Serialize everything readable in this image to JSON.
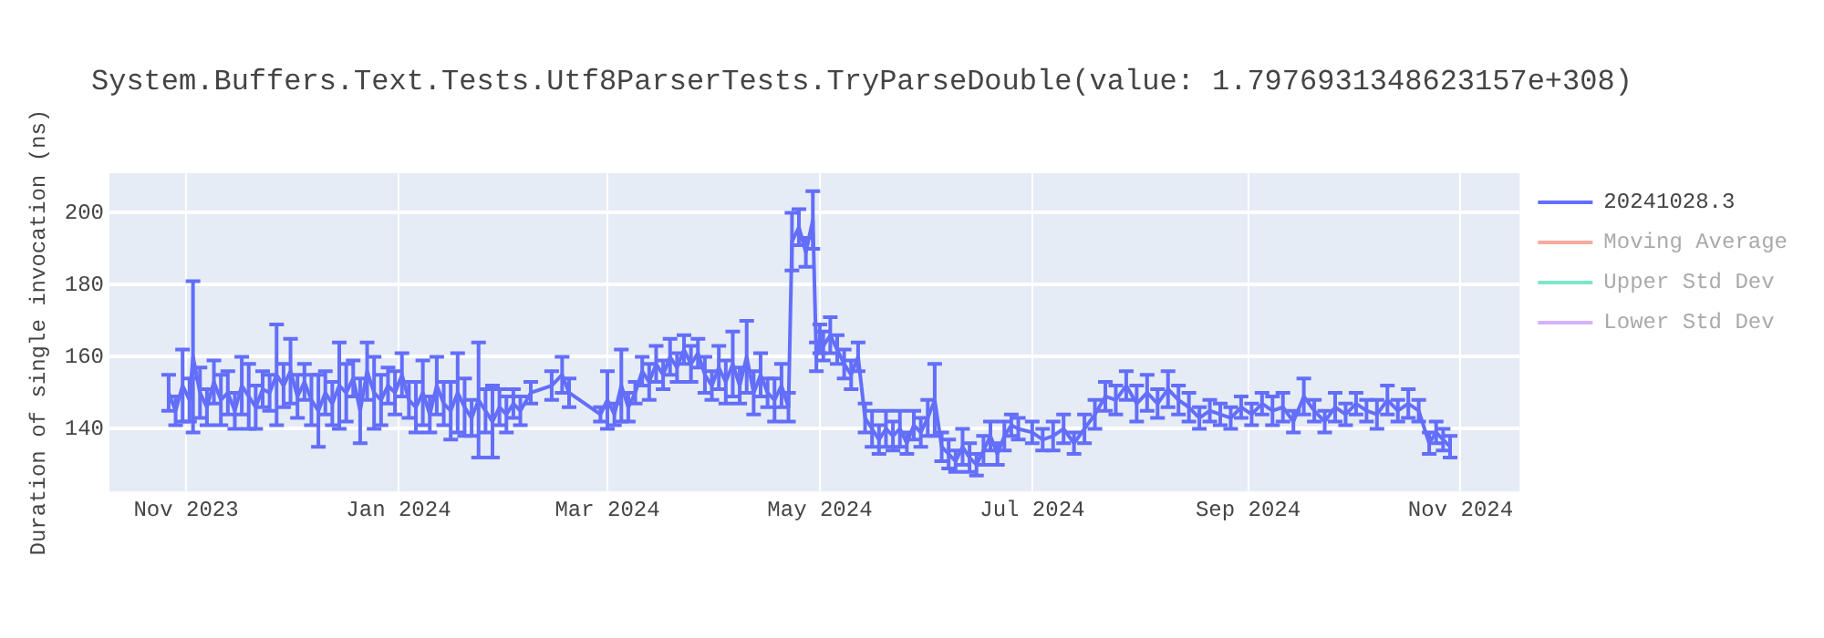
{
  "chart_data": {
    "type": "line",
    "title": "System.Buffers.Text.Tests.Utf8ParserTests.TryParseDouble(value: 1.7976931348623157e+308)",
    "ylabel": "Duration of single invocation (ns)",
    "x": [
      "2023-10-27",
      "2023-10-29",
      "2023-10-31",
      "2023-11-02",
      "2023-11-03",
      "2023-11-05",
      "2023-11-07",
      "2023-11-09",
      "2023-11-11",
      "2023-11-13",
      "2023-11-15",
      "2023-11-17",
      "2023-11-19",
      "2023-11-21",
      "2023-11-23",
      "2023-11-25",
      "2023-11-27",
      "2023-11-29",
      "2023-12-01",
      "2023-12-03",
      "2023-12-05",
      "2023-12-07",
      "2023-12-09",
      "2023-12-11",
      "2023-12-13",
      "2023-12-15",
      "2023-12-17",
      "2023-12-19",
      "2023-12-21",
      "2023-12-23",
      "2023-12-25",
      "2023-12-27",
      "2023-12-29",
      "2023-12-31",
      "2024-01-02",
      "2024-01-04",
      "2024-01-06",
      "2024-01-08",
      "2024-01-10",
      "2024-01-12",
      "2024-01-14",
      "2024-01-16",
      "2024-01-18",
      "2024-01-20",
      "2024-01-22",
      "2024-01-24",
      "2024-01-26",
      "2024-01-28",
      "2024-01-30",
      "2024-02-01",
      "2024-02-03",
      "2024-02-05",
      "2024-02-08",
      "2024-02-14",
      "2024-02-17",
      "2024-02-19",
      "2024-02-28",
      "2024-03-01",
      "2024-03-03",
      "2024-03-05",
      "2024-03-07",
      "2024-03-09",
      "2024-03-11",
      "2024-03-13",
      "2024-03-15",
      "2024-03-17",
      "2024-03-19",
      "2024-03-21",
      "2024-03-23",
      "2024-03-25",
      "2024-03-27",
      "2024-03-29",
      "2024-03-31",
      "2024-04-02",
      "2024-04-04",
      "2024-04-06",
      "2024-04-08",
      "2024-04-10",
      "2024-04-12",
      "2024-04-14",
      "2024-04-16",
      "2024-04-18",
      "2024-04-20",
      "2024-04-22",
      "2024-04-23",
      "2024-04-25",
      "2024-04-27",
      "2024-04-29",
      "2024-04-30",
      "2024-05-01",
      "2024-05-02",
      "2024-05-04",
      "2024-05-06",
      "2024-05-08",
      "2024-05-10",
      "2024-05-12",
      "2024-05-14",
      "2024-05-16",
      "2024-05-18",
      "2024-05-20",
      "2024-05-22",
      "2024-05-24",
      "2024-05-26",
      "2024-05-28",
      "2024-05-30",
      "2024-06-01",
      "2024-06-03",
      "2024-06-05",
      "2024-06-07",
      "2024-06-09",
      "2024-06-11",
      "2024-06-13",
      "2024-06-15",
      "2024-06-17",
      "2024-06-19",
      "2024-06-21",
      "2024-06-23",
      "2024-06-25",
      "2024-06-27",
      "2024-07-01",
      "2024-07-04",
      "2024-07-07",
      "2024-07-10",
      "2024-07-13",
      "2024-07-16",
      "2024-07-19",
      "2024-07-22",
      "2024-07-25",
      "2024-07-28",
      "2024-07-31",
      "2024-08-03",
      "2024-08-06",
      "2024-08-09",
      "2024-08-12",
      "2024-08-15",
      "2024-08-18",
      "2024-08-21",
      "2024-08-24",
      "2024-08-27",
      "2024-08-30",
      "2024-09-02",
      "2024-09-05",
      "2024-09-08",
      "2024-09-11",
      "2024-09-14",
      "2024-09-17",
      "2024-09-20",
      "2024-09-23",
      "2024-09-26",
      "2024-09-29",
      "2024-10-02",
      "2024-10-05",
      "2024-10-08",
      "2024-10-11",
      "2024-10-14",
      "2024-10-17",
      "2024-10-20",
      "2024-10-23",
      "2024-10-25",
      "2024-10-27",
      "2024-10-29"
    ],
    "series": [
      {
        "name": "20241028.3",
        "color": "#636efa",
        "values": [
          150,
          145,
          152,
          148,
          160,
          150,
          146,
          153,
          148,
          150,
          145,
          152,
          149,
          146,
          151,
          150,
          155,
          152,
          156,
          149,
          153,
          148,
          145,
          150,
          147,
          152,
          150,
          154,
          145,
          156,
          150,
          148,
          152,
          150,
          155,
          148,
          146,
          150,
          144,
          152,
          147,
          145,
          150,
          146,
          143,
          148,
          145,
          142,
          146,
          144,
          147,
          145,
          150,
          152,
          155,
          150,
          144,
          148,
          144,
          152,
          146,
          150,
          156,
          153,
          158,
          155,
          160,
          157,
          162,
          158,
          161,
          155,
          152,
          157,
          153,
          158,
          152,
          160,
          150,
          155,
          150,
          148,
          152,
          146,
          192,
          196,
          189,
          198,
          160,
          165,
          163,
          166,
          162,
          158,
          155,
          160,
          143,
          140,
          137,
          140,
          138,
          140,
          136,
          141,
          139,
          143,
          148,
          135,
          133,
          131,
          135,
          132,
          130,
          134,
          138,
          133,
          138,
          141,
          140,
          139,
          137,
          138,
          140,
          136,
          140,
          144,
          149,
          148,
          152,
          147,
          150,
          147,
          151,
          148,
          146,
          143,
          145,
          144,
          143,
          146,
          144,
          147,
          145,
          146,
          142,
          149,
          145,
          142,
          146,
          144,
          147,
          145,
          144,
          148,
          145,
          147,
          145,
          136,
          139,
          137,
          135
        ],
        "errors": [
          5,
          4,
          10,
          6,
          21,
          7,
          5,
          6,
          7,
          6,
          5,
          8,
          9,
          6,
          5,
          5,
          14,
          6,
          9,
          6,
          5,
          7,
          10,
          6,
          6,
          12,
          8,
          5,
          9,
          8,
          10,
          7,
          5,
          6,
          6,
          5,
          7,
          9,
          5,
          8,
          6,
          8,
          11,
          8,
          5,
          16,
          6,
          10,
          5,
          5,
          4,
          4,
          3,
          4,
          5,
          4,
          2,
          8,
          3,
          10,
          4,
          3,
          4,
          5,
          5,
          4,
          5,
          4,
          4,
          5,
          4,
          5,
          4,
          6,
          6,
          9,
          5,
          10,
          6,
          6,
          4,
          6,
          6,
          4,
          8,
          5,
          4,
          8,
          4,
          4,
          4,
          5,
          4,
          4,
          4,
          4,
          4,
          5,
          4,
          5,
          4,
          5,
          3,
          4,
          4,
          5,
          10,
          4,
          4,
          3,
          5,
          4,
          3,
          4,
          4,
          3,
          4,
          3,
          3,
          3,
          3,
          4,
          4,
          3,
          4,
          4,
          4,
          4,
          4,
          5,
          5,
          4,
          5,
          4,
          4,
          3,
          3,
          3,
          3,
          3,
          3,
          3,
          4,
          4,
          3,
          5,
          3,
          3,
          4,
          3,
          3,
          3,
          4,
          4,
          3,
          4,
          3,
          3,
          3,
          3,
          3
        ]
      },
      {
        "name": "Moving Average",
        "color": "#ef553b",
        "values": [
          null,
          null,
          null,
          null,
          null,
          null,
          null,
          null,
          null,
          null,
          null,
          null,
          null,
          null,
          null,
          null,
          null,
          null,
          null,
          null,
          null,
          null,
          null,
          null,
          null,
          null,
          null,
          null,
          null,
          null,
          null,
          null,
          null,
          null,
          null,
          null,
          null,
          null,
          null,
          null,
          null,
          null,
          null,
          null,
          null,
          null,
          null,
          null,
          null,
          null,
          null,
          null,
          null,
          null,
          null,
          null,
          null,
          null,
          null,
          null,
          null,
          null,
          null,
          null,
          null,
          null,
          null,
          null,
          null,
          null,
          null,
          null,
          null,
          null,
          null,
          null,
          null,
          null,
          null,
          null,
          null,
          null,
          null,
          null,
          null,
          null,
          null,
          null,
          null,
          null,
          null,
          null,
          null,
          null,
          null,
          null,
          null,
          null,
          null,
          null,
          null,
          null,
          null,
          null,
          null,
          null,
          null,
          null,
          null,
          null,
          null,
          null,
          null,
          null,
          null,
          null,
          null,
          null,
          null,
          null,
          null,
          null,
          null,
          null,
          null,
          null,
          null,
          null,
          null,
          null,
          null,
          null,
          null,
          null,
          null,
          null,
          null,
          null,
          null,
          null,
          null,
          null,
          null,
          null,
          null,
          null,
          null,
          null,
          null,
          null,
          null,
          null,
          null,
          null,
          null,
          null,
          null,
          null,
          null,
          null,
          null
        ]
      },
      {
        "name": "Upper Std Dev",
        "color": "#00cc96",
        "values": [
          null,
          null,
          null,
          null,
          null,
          null,
          null,
          null,
          null,
          null,
          null,
          null,
          null,
          null,
          null,
          null,
          null,
          null,
          null,
          null,
          null,
          null,
          null,
          null,
          null,
          null,
          null,
          null,
          null,
          null,
          null,
          null,
          null,
          null,
          null,
          null,
          null,
          null,
          null,
          null,
          null,
          null,
          null,
          null,
          null,
          null,
          null,
          null,
          null,
          null,
          null,
          null,
          null,
          null,
          null,
          null,
          null,
          null,
          null,
          null,
          null,
          null,
          null,
          null,
          null,
          null,
          null,
          null,
          null,
          null,
          null,
          null,
          null,
          null,
          null,
          null,
          null,
          null,
          null,
          null,
          null,
          null,
          null,
          null,
          null,
          null,
          null,
          null,
          null,
          null,
          null,
          null,
          null,
          null,
          null,
          null,
          null,
          null,
          null,
          null,
          null,
          null,
          null,
          null,
          null,
          null,
          null,
          null,
          null,
          null,
          null,
          null,
          null,
          null,
          null,
          null,
          null,
          null,
          null,
          null,
          null,
          null,
          null,
          null,
          null,
          null,
          null,
          null,
          null,
          null,
          null,
          null,
          null,
          null,
          null,
          null,
          null,
          null,
          null,
          null,
          null,
          null,
          null,
          null,
          null,
          null,
          null,
          null,
          null,
          null,
          null,
          null,
          null,
          null,
          null,
          null,
          null,
          null,
          null,
          null,
          null
        ]
      },
      {
        "name": "Lower Std Dev",
        "color": "#ab63fa",
        "values": [
          null,
          null,
          null,
          null,
          null,
          null,
          null,
          null,
          null,
          null,
          null,
          null,
          null,
          null,
          null,
          null,
          null,
          null,
          null,
          null,
          null,
          null,
          null,
          null,
          null,
          null,
          null,
          null,
          null,
          null,
          null,
          null,
          null,
          null,
          null,
          null,
          null,
          null,
          null,
          null,
          null,
          null,
          null,
          null,
          null,
          null,
          null,
          null,
          null,
          null,
          null,
          null,
          null,
          null,
          null,
          null,
          null,
          null,
          null,
          null,
          null,
          null,
          null,
          null,
          null,
          null,
          null,
          null,
          null,
          null,
          null,
          null,
          null,
          null,
          null,
          null,
          null,
          null,
          null,
          null,
          null,
          null,
          null,
          null,
          null,
          null,
          null,
          null,
          null,
          null,
          null,
          null,
          null,
          null,
          null,
          null,
          null,
          null,
          null,
          null,
          null,
          null,
          null,
          null,
          null,
          null,
          null,
          null,
          null,
          null,
          null,
          null,
          null,
          null,
          null,
          null,
          null,
          null,
          null,
          null,
          null,
          null,
          null,
          null,
          null,
          null,
          null,
          null,
          null,
          null,
          null,
          null,
          null,
          null,
          null,
          null,
          null,
          null,
          null,
          null,
          null,
          null,
          null,
          null,
          null,
          null,
          null,
          null,
          null,
          null,
          null,
          null,
          null,
          null,
          null,
          null,
          null,
          null,
          null,
          null,
          null
        ]
      }
    ],
    "xlim": [
      "2023-10-10",
      "2024-11-18"
    ],
    "xticks": [
      {
        "value": "2023-11-01",
        "label": "Nov 2023"
      },
      {
        "value": "2024-01-01",
        "label": "Jan 2024"
      },
      {
        "value": "2024-03-01",
        "label": "Mar 2024"
      },
      {
        "value": "2024-05-01",
        "label": "May 2024"
      },
      {
        "value": "2024-07-01",
        "label": "Jul 2024"
      },
      {
        "value": "2024-09-01",
        "label": "Sep 2024"
      },
      {
        "value": "2024-11-01",
        "label": "Nov 2024"
      }
    ],
    "ylim": [
      122.6,
      211
    ],
    "yticks": [
      140,
      160,
      180,
      200
    ],
    "grid": true,
    "legend": "top right",
    "marker": "none",
    "line_style": "solid"
  }
}
